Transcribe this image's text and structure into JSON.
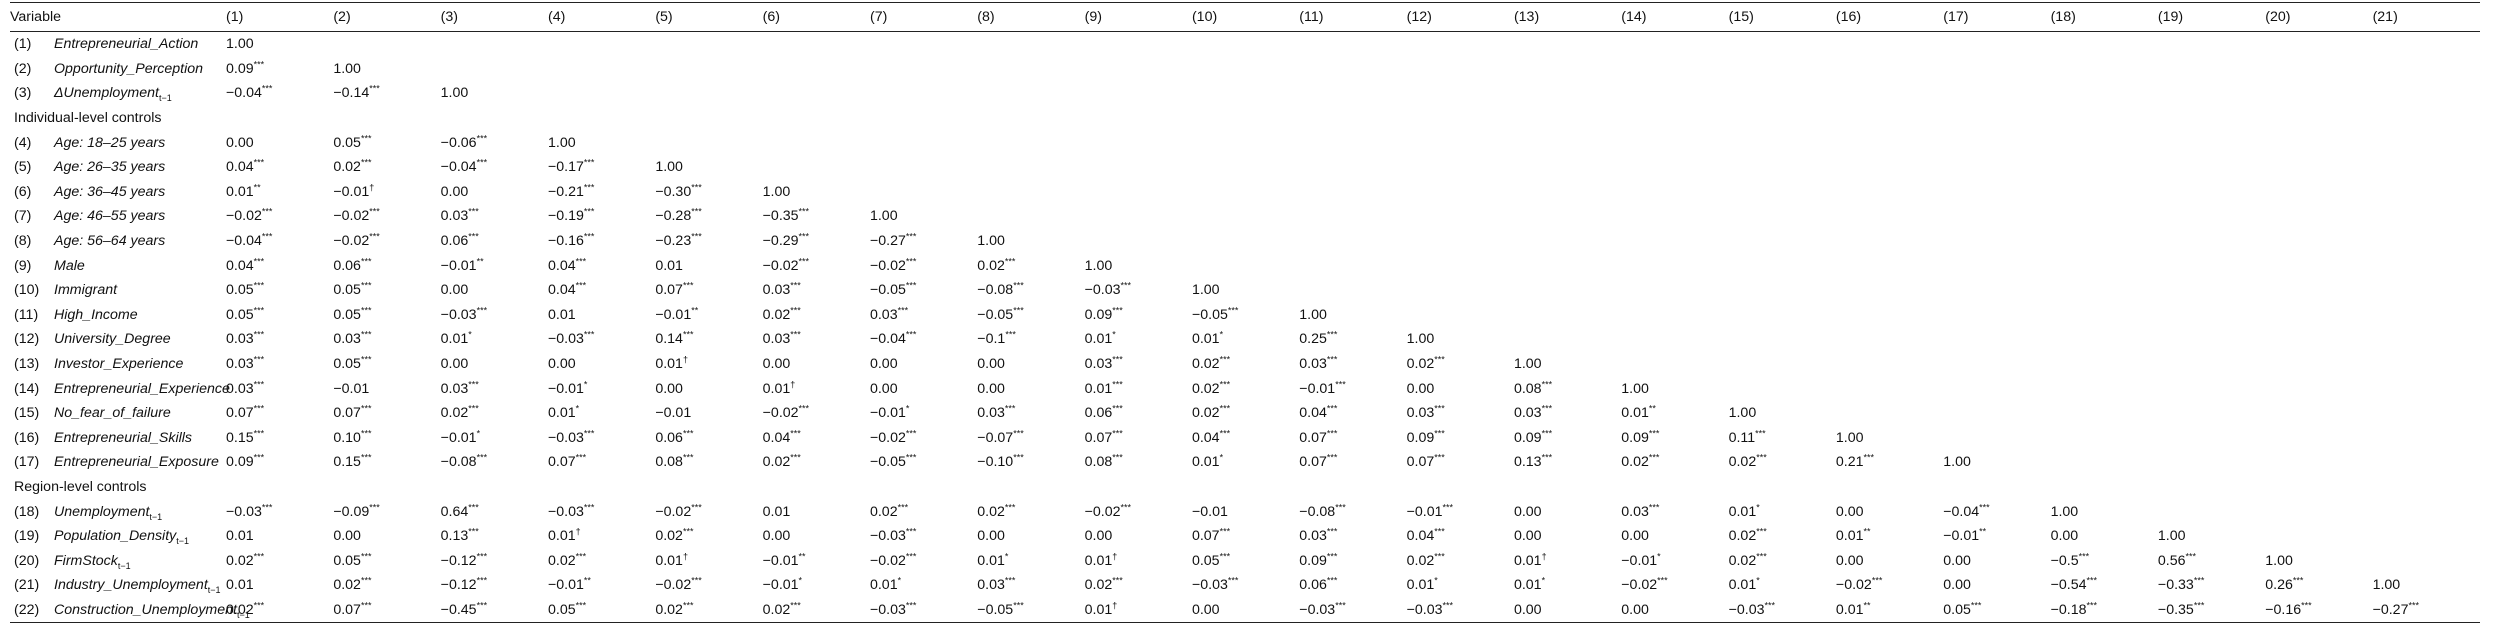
{
  "table": {
    "header": {
      "variable": "Variable",
      "cols": [
        "(1)",
        "(2)",
        "(3)",
        "(4)",
        "(5)",
        "(6)",
        "(7)",
        "(8)",
        "(9)",
        "(10)",
        "(11)",
        "(12)",
        "(13)",
        "(14)",
        "(15)",
        "(16)",
        "(17)",
        "(18)",
        "(19)",
        "(20)",
        "(21)"
      ]
    },
    "rows": [
      {
        "idx": "(1)",
        "name": "Entrepreneurial_Action",
        "vals": [
          "1.00"
        ]
      },
      {
        "idx": "(2)",
        "name": "Opportunity_Perception",
        "vals": [
          "0.09***",
          "1.00"
        ]
      },
      {
        "idx": "(3)",
        "name": "ΔUnemployment",
        "sub": "t−1",
        "vals": [
          "−0.04***",
          "−0.14***",
          "1.00"
        ]
      },
      {
        "section": "Individual-level controls"
      },
      {
        "idx": "(4)",
        "name": "Age: 18–25 years",
        "vals": [
          "0.00",
          "0.05***",
          "−0.06***",
          "1.00"
        ]
      },
      {
        "idx": "(5)",
        "name": "Age: 26–35 years",
        "vals": [
          "0.04***",
          "0.02***",
          "−0.04***",
          "−0.17***",
          "1.00"
        ]
      },
      {
        "idx": "(6)",
        "name": "Age: 36–45 years",
        "vals": [
          "0.01**",
          "−0.01†",
          "0.00",
          "−0.21***",
          "−0.30***",
          "1.00"
        ]
      },
      {
        "idx": "(7)",
        "name": "Age: 46–55 years",
        "vals": [
          "−0.02***",
          "−0.02***",
          "0.03***",
          "−0.19***",
          "−0.28***",
          "−0.35***",
          "1.00"
        ]
      },
      {
        "idx": "(8)",
        "name": "Age: 56–64 years",
        "vals": [
          "−0.04***",
          "−0.02***",
          "0.06***",
          "−0.16***",
          "−0.23***",
          "−0.29***",
          "−0.27***",
          "1.00"
        ]
      },
      {
        "idx": "(9)",
        "name": "Male",
        "vals": [
          "0.04***",
          "0.06***",
          "−0.01**",
          "0.04***",
          "0.01",
          "−0.02***",
          "−0.02***",
          "0.02***",
          "1.00"
        ]
      },
      {
        "idx": "(10)",
        "name": "Immigrant",
        "vals": [
          "0.05***",
          "0.05***",
          "0.00",
          "0.04***",
          "0.07***",
          "0.03***",
          "−0.05***",
          "−0.08***",
          "−0.03***",
          "1.00"
        ]
      },
      {
        "idx": "(11)",
        "name": "High_Income",
        "vals": [
          "0.05***",
          "0.05***",
          "−0.03***",
          "0.01",
          "−0.01**",
          "0.02***",
          "0.03***",
          "−0.05***",
          "0.09***",
          "−0.05***",
          "1.00"
        ]
      },
      {
        "idx": "(12)",
        "name": "University_Degree",
        "vals": [
          "0.03***",
          "0.03***",
          "0.01*",
          "−0.03***",
          "0.14***",
          "0.03***",
          "−0.04***",
          "−0.1***",
          "0.01*",
          "0.01*",
          "0.25***",
          "1.00"
        ]
      },
      {
        "idx": "(13)",
        "name": "Investor_Experience",
        "vals": [
          "0.03***",
          "0.05***",
          "0.00",
          "0.00",
          "0.01†",
          "0.00",
          "0.00",
          "0.00",
          "0.03***",
          "0.02***",
          "0.03***",
          "0.02***",
          "1.00"
        ]
      },
      {
        "idx": "(14)",
        "name": "Entrepreneurial_Experience",
        "vals": [
          "0.03***",
          "−0.01",
          "0.03***",
          "−0.01*",
          "0.00",
          "0.01†",
          "0.00",
          "0.00",
          "0.01***",
          "0.02***",
          "−0.01***",
          "0.00",
          "0.08***",
          "1.00"
        ]
      },
      {
        "idx": "(15)",
        "name": "No_fear_of_failure",
        "vals": [
          "0.07***",
          "0.07***",
          "0.02***",
          "0.01*",
          "−0.01",
          "−0.02***",
          "−0.01*",
          "0.03***",
          "0.06***",
          "0.02***",
          "0.04***",
          "0.03***",
          "0.03***",
          "0.01**",
          "1.00"
        ]
      },
      {
        "idx": "(16)",
        "name": "Entrepreneurial_Skills",
        "vals": [
          "0.15***",
          "0.10***",
          "−0.01*",
          "−0.03***",
          "0.06***",
          "0.04***",
          "−0.02***",
          "−0.07***",
          "0.07***",
          "0.04***",
          "0.07***",
          "0.09***",
          "0.09***",
          "0.09***",
          "0.11***",
          "1.00"
        ]
      },
      {
        "idx": "(17)",
        "name": "Entrepreneurial_Exposure",
        "vals": [
          "0.09***",
          "0.15***",
          "−0.08***",
          "0.07***",
          "0.08***",
          "0.02***",
          "−0.05***",
          "−0.10***",
          "0.08***",
          "0.01*",
          "0.07***",
          "0.07***",
          "0.13***",
          "0.02***",
          "0.02***",
          "0.21***",
          "1.00"
        ]
      },
      {
        "section": "Region-level controls"
      },
      {
        "idx": "(18)",
        "name": "Unemployment",
        "sub": "t−1",
        "vals": [
          "−0.03***",
          "−0.09***",
          "0.64***",
          "−0.03***",
          "−0.02***",
          "0.01",
          "0.02***",
          "0.02***",
          "−0.02***",
          "−0.01",
          "−0.08***",
          "−0.01***",
          "0.00",
          "0.03***",
          "0.01*",
          "0.00",
          "−0.04***",
          "1.00"
        ]
      },
      {
        "idx": "(19)",
        "name": "Population_Density",
        "sub": "t−1",
        "vals": [
          "0.01",
          "0.00",
          "0.13***",
          "0.01†",
          "0.02***",
          "0.00",
          "−0.03***",
          "0.00",
          "0.00",
          "0.07***",
          "0.03***",
          "0.04***",
          "0.00",
          "0.00",
          "0.02***",
          "0.01**",
          "−0.01**",
          "0.00",
          "1.00"
        ]
      },
      {
        "idx": "(20)",
        "name": "FirmStock",
        "sub": "t−1",
        "vals": [
          "0.02***",
          "0.05***",
          "−0.12***",
          "0.02***",
          "0.01†",
          "−0.01**",
          "−0.02***",
          "0.01*",
          "0.01†",
          "0.05***",
          "0.09***",
          "0.02***",
          "0.01†",
          "−0.01*",
          "0.02***",
          "0.00",
          "0.00",
          "−0.5***",
          "0.56***",
          "1.00"
        ]
      },
      {
        "idx": "(21)",
        "name": "Industry_Unemployment",
        "sub": "t−1",
        "vals": [
          "0.01",
          "0.02***",
          "−0.12***",
          "−0.01**",
          "−0.02***",
          "−0.01*",
          "0.01*",
          "0.03***",
          "0.02***",
          "−0.03***",
          "0.06***",
          "0.01*",
          "0.01*",
          "−0.02***",
          "0.01*",
          "−0.02***",
          "0.00",
          "−0.54***",
          "−0.33***",
          "0.26***",
          "1.00"
        ]
      },
      {
        "idx": "(22)",
        "name": "Construction_Unemployment",
        "sub": "t−1",
        "vals": [
          "0.02***",
          "0.07***",
          "−0.45***",
          "0.05***",
          "0.02***",
          "0.02***",
          "−0.03***",
          "−0.05***",
          "0.01†",
          "0.00",
          "−0.03***",
          "−0.03***",
          "0.00",
          "0.00",
          "−0.03***",
          "0.01**",
          "0.05***",
          "−0.18***",
          "−0.35***",
          "−0.16***",
          "−0.27***"
        ]
      }
    ]
  }
}
